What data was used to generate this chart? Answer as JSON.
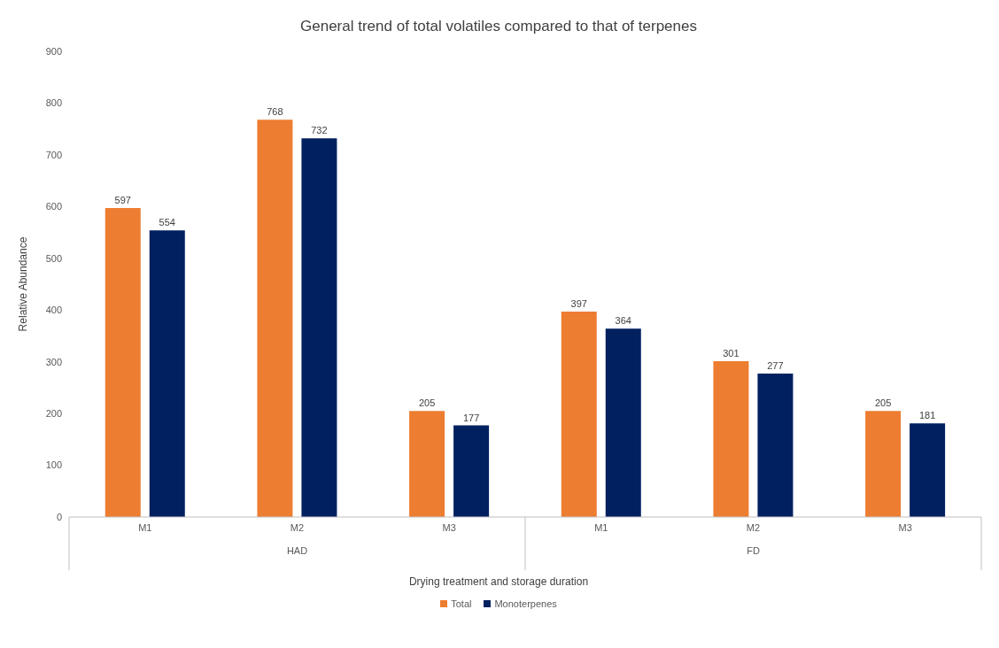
{
  "chart_data": {
    "type": "bar",
    "title": "General trend of total volatiles compared to that of terpenes",
    "xlabel": "Drying treatment and storage duration",
    "ylabel": "Relative Abundance",
    "categories": [
      "M1",
      "M2",
      "M3",
      "M1",
      "M2",
      "M3"
    ],
    "annotations": [
      "HAD",
      "FD"
    ],
    "series": [
      {
        "name": "Total",
        "color": "#ed7d31",
        "values": [
          597,
          768,
          205,
          397,
          301,
          205
        ]
      },
      {
        "name": "Monoterpenes",
        "color": "#002060",
        "values": [
          554,
          732,
          177,
          364,
          277,
          181
        ]
      }
    ],
    "ylim": [
      0,
      900
    ],
    "yticks": [
      0,
      100,
      200,
      300,
      400,
      500,
      600,
      700,
      800,
      900
    ],
    "grid": false,
    "legend": "bottom",
    "data_labels": true
  }
}
